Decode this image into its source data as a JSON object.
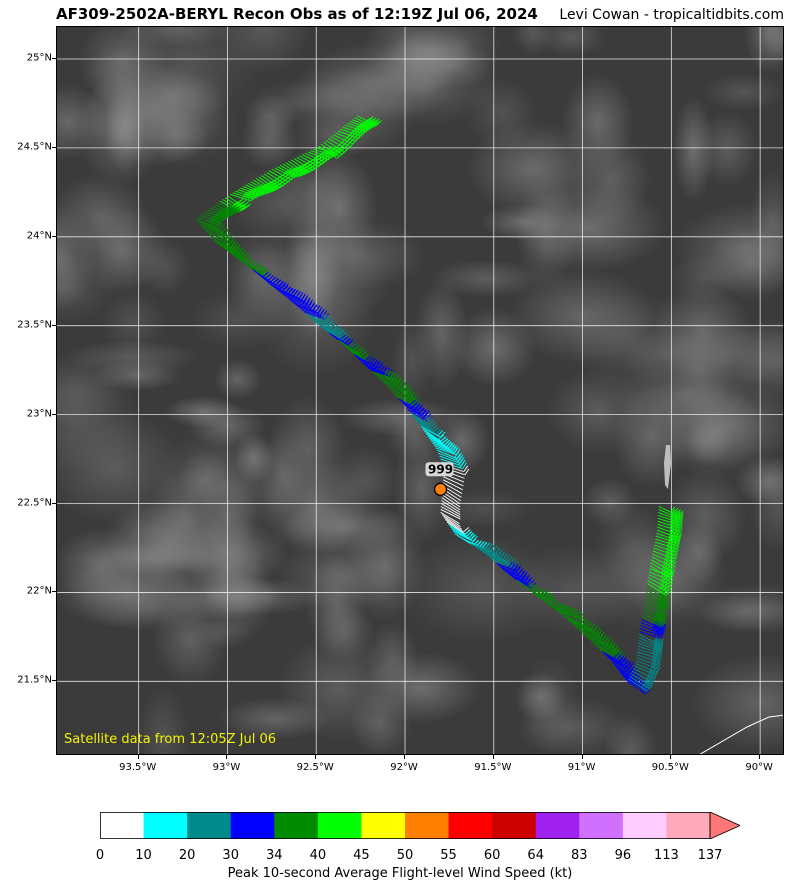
{
  "header": {
    "title": "AF309-2502A-BERYL Recon Obs as of 12:19Z Jul 06, 2024",
    "credit": "Levi Cowan - tropicaltidbits.com"
  },
  "map": {
    "satellite_note": "Satellite data from 12:05Z Jul 06",
    "pressure_label": "999",
    "lat_labels": [
      "25°N",
      "24.5°N",
      "24°N",
      "23.5°N",
      "23°N",
      "22.5°N",
      "22°N",
      "21.5°N"
    ],
    "lon_labels": [
      "93.5°W",
      "93°W",
      "92.5°W",
      "92°W",
      "91.5°W",
      "91°W",
      "90.5°W",
      "90°W"
    ],
    "center": {
      "lon": -91.8,
      "lat": 22.58
    },
    "track": [
      {
        "lon": -92.27,
        "lat": 24.68,
        "kt": 42
      },
      {
        "lon": -92.5,
        "lat": 24.5,
        "kt": 43
      },
      {
        "lon": -92.75,
        "lat": 24.38,
        "kt": 42
      },
      {
        "lon": -93.0,
        "lat": 24.23,
        "kt": 41
      },
      {
        "lon": -93.18,
        "lat": 24.1,
        "kt": 37
      },
      {
        "lon": -93.08,
        "lat": 23.98,
        "kt": 36
      },
      {
        "lon": -92.9,
        "lat": 23.85,
        "kt": 35
      },
      {
        "lon": -92.78,
        "lat": 23.75,
        "kt": 31
      },
      {
        "lon": -92.62,
        "lat": 23.62,
        "kt": 32
      },
      {
        "lon": -92.48,
        "lat": 23.5,
        "kt": 27
      },
      {
        "lon": -92.35,
        "lat": 23.4,
        "kt": 36
      },
      {
        "lon": -92.25,
        "lat": 23.3,
        "kt": 32
      },
      {
        "lon": -92.12,
        "lat": 23.18,
        "kt": 36
      },
      {
        "lon": -92.0,
        "lat": 23.05,
        "kt": 33
      },
      {
        "lon": -91.9,
        "lat": 22.92,
        "kt": 18
      },
      {
        "lon": -91.82,
        "lat": 22.8,
        "kt": 15
      },
      {
        "lon": -91.78,
        "lat": 22.7,
        "kt": 8
      },
      {
        "lon": -91.8,
        "lat": 22.45,
        "kt": 6
      },
      {
        "lon": -91.72,
        "lat": 22.33,
        "kt": 14
      },
      {
        "lon": -91.55,
        "lat": 22.22,
        "kt": 27
      },
      {
        "lon": -91.45,
        "lat": 22.13,
        "kt": 32
      },
      {
        "lon": -91.28,
        "lat": 22.0,
        "kt": 37
      },
      {
        "lon": -91.12,
        "lat": 21.88,
        "kt": 36
      },
      {
        "lon": -90.98,
        "lat": 21.75,
        "kt": 38
      },
      {
        "lon": -90.85,
        "lat": 21.63,
        "kt": 32
      },
      {
        "lon": -90.75,
        "lat": 21.5,
        "kt": 30
      },
      {
        "lon": -90.7,
        "lat": 21.6,
        "kt": 25
      },
      {
        "lon": -90.68,
        "lat": 21.78,
        "kt": 30
      },
      {
        "lon": -90.65,
        "lat": 21.95,
        "kt": 38
      },
      {
        "lon": -90.62,
        "lat": 22.15,
        "kt": 42
      },
      {
        "lon": -90.58,
        "lat": 22.35,
        "kt": 42
      },
      {
        "lon": -90.57,
        "lat": 22.5,
        "kt": 41
      }
    ]
  },
  "colorbar": {
    "title": "Peak 10-second Average Flight-level Wind Speed (kt)",
    "labels": [
      "0",
      "10",
      "20",
      "30",
      "34",
      "40",
      "45",
      "50",
      "55",
      "60",
      "64",
      "83",
      "96",
      "113",
      "137"
    ],
    "colors": [
      "#ffffff",
      "#00ffff",
      "#008b8b",
      "#0000ff",
      "#008b00",
      "#00ff00",
      "#ffff00",
      "#ff7f00",
      "#ff0000",
      "#cd0000",
      "#a020f0",
      "#d070ff",
      "#ffccff",
      "#ffaabb"
    ],
    "extend_color": "#ff7777"
  }
}
